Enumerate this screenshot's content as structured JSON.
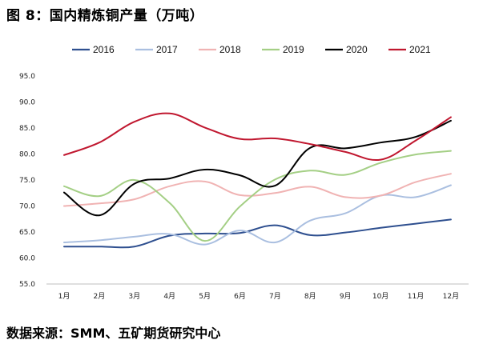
{
  "figure": {
    "title": "图 8：国内精炼铜产量（万吨）",
    "source": "数据来源：SMM、五矿期货研究中心"
  },
  "chart_data": {
    "type": "line",
    "title": "",
    "xlabel": "",
    "ylabel": "",
    "categories": [
      "1月",
      "2月",
      "3月",
      "4月",
      "5月",
      "6月",
      "7月",
      "8月",
      "9月",
      "10月",
      "11月",
      "12月"
    ],
    "ylim": [
      55.0,
      95.0
    ],
    "yticks": [
      "55.0",
      "60.0",
      "65.0",
      "70.0",
      "75.0",
      "80.0",
      "85.0",
      "90.0",
      "95.0"
    ],
    "grid": false,
    "legend_position": "top",
    "smooth": true,
    "series": [
      {
        "name": "2016",
        "color": "#2e4f8f",
        "values": [
          62.2,
          62.2,
          62.2,
          64.3,
          64.7,
          64.8,
          66.3,
          64.4,
          64.9,
          65.8,
          66.6,
          67.4
        ]
      },
      {
        "name": "2017",
        "color": "#aabfe0",
        "values": [
          63.0,
          63.4,
          64.1,
          64.6,
          62.6,
          65.3,
          63.0,
          67.2,
          68.6,
          72.0,
          71.7,
          74.0
        ]
      },
      {
        "name": "2018",
        "color": "#f0b3b3",
        "values": [
          70.0,
          70.5,
          71.3,
          73.8,
          74.7,
          72.1,
          72.5,
          73.7,
          71.7,
          72.0,
          74.6,
          76.2
        ]
      },
      {
        "name": "2019",
        "color": "#a4cf85",
        "values": [
          73.8,
          71.9,
          75.0,
          70.6,
          63.3,
          69.9,
          75.1,
          76.8,
          76.0,
          78.3,
          79.9,
          80.6
        ]
      },
      {
        "name": "2020",
        "color": "#000000",
        "values": [
          72.6,
          68.2,
          74.3,
          75.3,
          77.0,
          75.9,
          73.9,
          81.2,
          81.1,
          82.2,
          83.3,
          86.4
        ]
      },
      {
        "name": "2021",
        "color": "#c0172f",
        "values": [
          79.8,
          82.2,
          86.2,
          87.8,
          85.1,
          82.9,
          83.0,
          81.9,
          80.4,
          78.9,
          82.6,
          87.1
        ]
      }
    ]
  }
}
